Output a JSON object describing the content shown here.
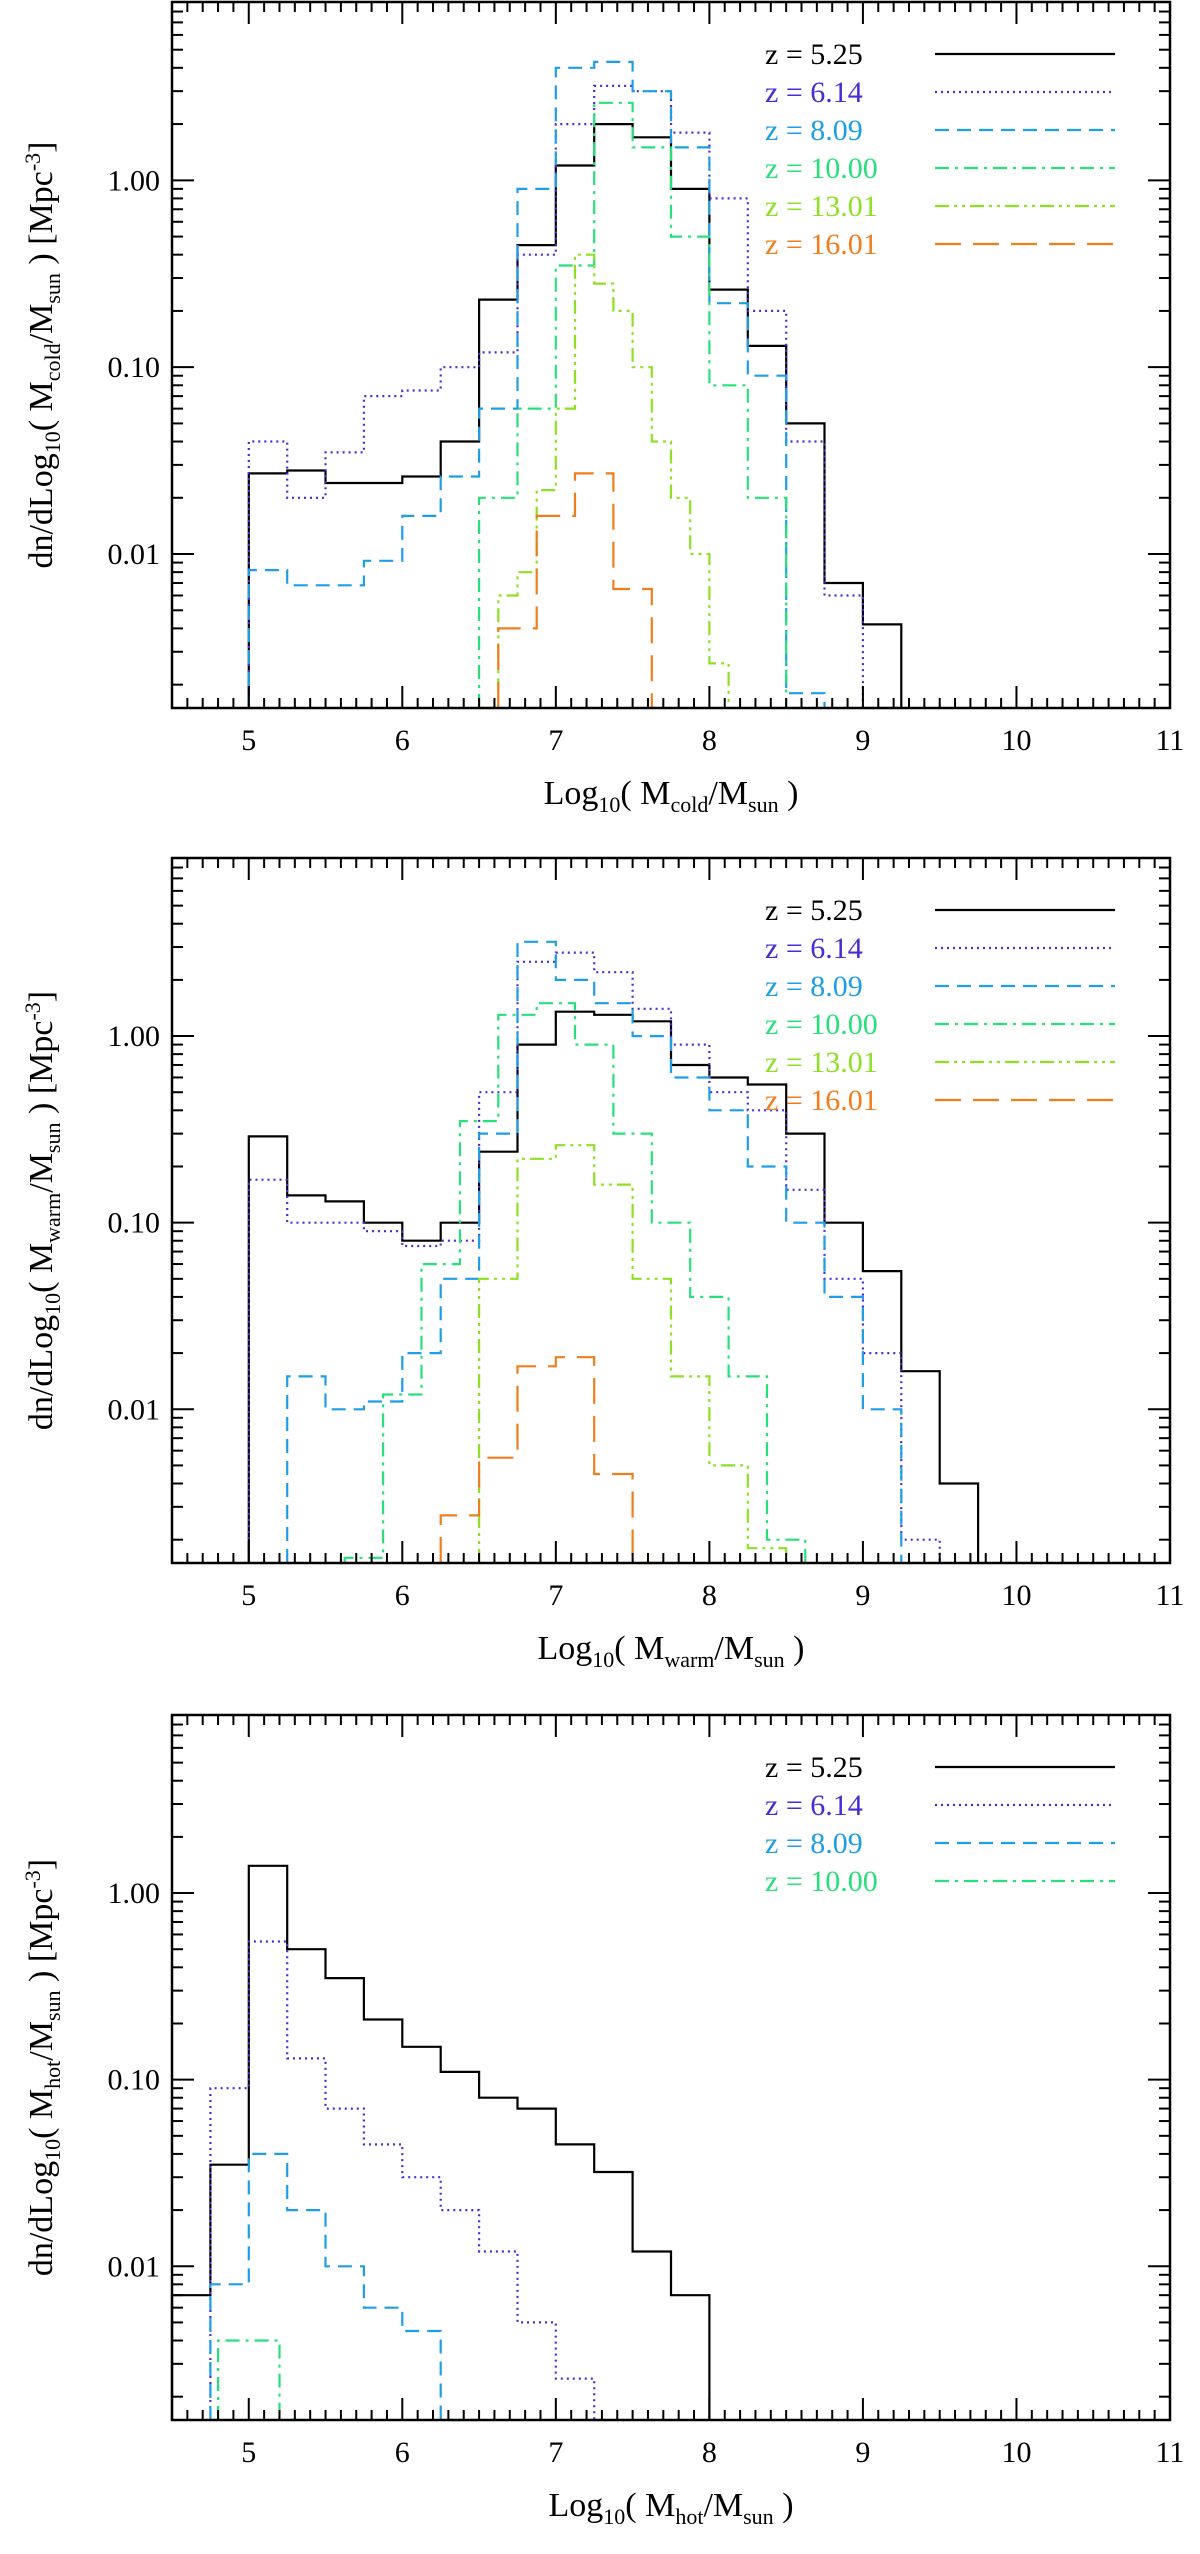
{
  "chart_data": [
    {
      "type": "line",
      "step": true,
      "xlabel": {
        "pre": "Log",
        "sub1": "10",
        "mid": "( M",
        "sub2": "cold",
        "post": "/M",
        "sub3": "sun",
        "end": " )"
      },
      "ylabel": {
        "pre": "dn/dLog",
        "sub1": "10",
        "mid": "( M",
        "sub2": "cold",
        "post": "/M",
        "sub3": "sun",
        "mid2": " ) [Mpc",
        "sup": "-3",
        "end": "]"
      },
      "xlim": [
        4.5,
        11
      ],
      "ylim_log": [
        0.0015,
        9
      ],
      "xticks": [
        "5",
        "6",
        "7",
        "8",
        "9",
        "10",
        "11"
      ],
      "yticks": [
        "0.01",
        "0.10",
        "1.00"
      ],
      "series": [
        {
          "name": "z = 5.25",
          "color": "#000000",
          "dash": "solid",
          "x": [
            5.125,
            5.375,
            5.625,
            5.875,
            6.125,
            6.375,
            6.625,
            6.875,
            7.125,
            7.375,
            7.625,
            7.875,
            8.125,
            8.375,
            8.625,
            8.875,
            9.125
          ],
          "y": [
            0.027,
            0.028,
            0.024,
            0.024,
            0.026,
            0.04,
            0.23,
            0.45,
            1.2,
            2.0,
            1.7,
            0.9,
            0.26,
            0.13,
            0.05,
            0.007,
            0.0042
          ]
        },
        {
          "name": "z = 6.14",
          "color": "#4b2bd6",
          "dash": "dotted",
          "x": [
            5.125,
            5.375,
            5.625,
            5.875,
            6.125,
            6.375,
            6.625,
            6.875,
            7.125,
            7.375,
            7.625,
            7.875,
            8.125,
            8.375,
            8.625,
            8.875,
            9.125
          ],
          "y": [
            0.04,
            0.02,
            0.035,
            0.07,
            0.075,
            0.1,
            0.12,
            0.4,
            2.0,
            3.2,
            3.0,
            1.8,
            0.8,
            0.2,
            0.04,
            0.006,
            0.0015
          ]
        },
        {
          "name": "z = 8.09",
          "color": "#1e9ee6",
          "dash": "dashed",
          "x": [
            5.125,
            5.375,
            5.625,
            5.875,
            6.125,
            6.375,
            6.625,
            6.875,
            7.125,
            7.375,
            7.625,
            7.875,
            8.125,
            8.375,
            8.625
          ],
          "y": [
            0.0082,
            0.0068,
            0.0068,
            0.0092,
            0.016,
            0.026,
            0.06,
            0.9,
            4.0,
            4.3,
            3.0,
            1.5,
            0.22,
            0.09,
            0.0018
          ]
        },
        {
          "name": "z = 10.00",
          "color": "#28e07a",
          "dash": "dashdot",
          "x": [
            6.625,
            6.875,
            7.125,
            7.375,
            7.625,
            7.875,
            8.125,
            8.375
          ],
          "y": [
            0.02,
            0.06,
            0.35,
            2.6,
            1.5,
            0.5,
            0.08,
            0.02
          ]
        },
        {
          "name": "z = 13.01",
          "color": "#8ee024",
          "dash": "dashdotdot",
          "x": [
            6.5625,
            6.6875,
            6.8125,
            6.9375,
            7.0625,
            7.1875,
            7.3125,
            7.4375,
            7.5625,
            7.6875,
            7.8125,
            7.9375,
            8.0625
          ],
          "y": [
            0.0015,
            0.006,
            0.008,
            0.022,
            0.06,
            0.4,
            0.28,
            0.2,
            0.1,
            0.04,
            0.02,
            0.01,
            0.0026
          ]
        },
        {
          "name": "z = 16.01",
          "color": "#f07d1e",
          "dash": "longdash",
          "x": [
            6.75,
            7.0,
            7.25,
            7.5
          ],
          "y": [
            0.004,
            0.016,
            0.027,
            0.0065
          ]
        }
      ]
    },
    {
      "type": "line",
      "step": true,
      "xlabel": {
        "pre": "Log",
        "sub1": "10",
        "mid": "( M",
        "sub2": "warm",
        "post": "/M",
        "sub3": "sun",
        "end": " )"
      },
      "ylabel": {
        "pre": "dn/dLog",
        "sub1": "10",
        "mid": "( M",
        "sub2": "warm",
        "post": "/M",
        "sub3": "sun",
        "mid2": " ) [Mpc",
        "sup": "-3",
        "end": "]"
      },
      "xlim": [
        4.5,
        11
      ],
      "ylim_log": [
        0.0015,
        9
      ],
      "xticks": [
        "5",
        "6",
        "7",
        "8",
        "9",
        "10",
        "11"
      ],
      "yticks": [
        "0.01",
        "0.10",
        "1.00"
      ],
      "series": [
        {
          "name": "z = 5.25",
          "color": "#000000",
          "dash": "solid",
          "x": [
            5.125,
            5.375,
            5.625,
            5.875,
            6.125,
            6.375,
            6.625,
            6.875,
            7.125,
            7.375,
            7.625,
            7.875,
            8.125,
            8.375,
            8.625,
            8.875,
            9.125,
            9.375,
            9.625
          ],
          "y": [
            0.29,
            0.14,
            0.13,
            0.1,
            0.08,
            0.1,
            0.24,
            0.9,
            1.35,
            1.3,
            1.2,
            0.7,
            0.6,
            0.55,
            0.3,
            0.1,
            0.055,
            0.016,
            0.004
          ]
        },
        {
          "name": "z = 6.14",
          "color": "#4b2bd6",
          "dash": "dotted",
          "x": [
            5.125,
            5.375,
            5.625,
            5.875,
            6.125,
            6.375,
            6.625,
            6.875,
            7.125,
            7.375,
            7.625,
            7.875,
            8.125,
            8.375,
            8.625,
            8.875,
            9.125,
            9.375
          ],
          "y": [
            0.17,
            0.1,
            0.1,
            0.09,
            0.075,
            0.08,
            0.5,
            2.5,
            2.8,
            2.2,
            1.4,
            0.9,
            0.5,
            0.4,
            0.15,
            0.05,
            0.02,
            0.002
          ]
        },
        {
          "name": "z = 8.09",
          "color": "#1e9ee6",
          "dash": "dashed",
          "x": [
            5.375,
            5.625,
            5.875,
            6.125,
            6.375,
            6.625,
            6.875,
            7.125,
            7.375,
            7.625,
            7.875,
            8.125,
            8.375,
            8.625,
            8.875,
            9.125
          ],
          "y": [
            0.015,
            0.01,
            0.011,
            0.02,
            0.05,
            0.3,
            3.2,
            2.0,
            1.5,
            1.0,
            0.6,
            0.4,
            0.2,
            0.1,
            0.04,
            0.01
          ]
        },
        {
          "name": "z = 10.00",
          "color": "#28e07a",
          "dash": "dashdot",
          "x": [
            5.75,
            6.0,
            6.25,
            6.5,
            6.75,
            7.0,
            7.25,
            7.5,
            7.75,
            8.0,
            8.25,
            8.5
          ],
          "y": [
            0.0016,
            0.012,
            0.06,
            0.35,
            1.3,
            1.5,
            0.9,
            0.3,
            0.1,
            0.04,
            0.015,
            0.002
          ]
        },
        {
          "name": "z = 13.01",
          "color": "#8ee024",
          "dash": "dashdotdot",
          "x": [
            6.625,
            6.875,
            7.125,
            7.375,
            7.625,
            7.875,
            8.125,
            8.375
          ],
          "y": [
            0.05,
            0.22,
            0.26,
            0.16,
            0.05,
            0.015,
            0.005,
            0.0018
          ]
        },
        {
          "name": "z = 16.01",
          "color": "#f07d1e",
          "dash": "longdash",
          "x": [
            6.375,
            6.625,
            6.875,
            7.125,
            7.375,
            7.625
          ],
          "y": [
            0.0027,
            0.0055,
            0.017,
            0.019,
            0.0045,
            0.0015
          ]
        }
      ]
    },
    {
      "type": "line",
      "step": true,
      "xlabel": {
        "pre": "Log",
        "sub1": "10",
        "mid": "( M",
        "sub2": "hot",
        "post": "/M",
        "sub3": "sun",
        "end": " )"
      },
      "ylabel": {
        "pre": "dn/dLog",
        "sub1": "10",
        "mid": "( M",
        "sub2": "hot",
        "post": "/M",
        "sub3": "sun",
        "mid2": " ) [Mpc",
        "sup": "-3",
        "end": "]"
      },
      "xlim": [
        4.5,
        11
      ],
      "ylim_log": [
        0.0015,
        9
      ],
      "xticks": [
        "5",
        "6",
        "7",
        "8",
        "9",
        "10",
        "11"
      ],
      "yticks": [
        "0.01",
        "0.10",
        "1.00"
      ],
      "series": [
        {
          "name": "z = 5.25",
          "color": "#000000",
          "dash": "solid",
          "x": [
            4.625,
            4.875,
            5.125,
            5.375,
            5.625,
            5.875,
            6.125,
            6.375,
            6.625,
            6.875,
            7.125,
            7.375,
            7.625,
            7.875
          ],
          "y": [
            0.007,
            0.035,
            1.4,
            0.5,
            0.35,
            0.21,
            0.15,
            0.11,
            0.08,
            0.07,
            0.045,
            0.032,
            0.012,
            0.007
          ]
        },
        {
          "name": "z = 6.14",
          "color": "#4b2bd6",
          "dash": "dotted",
          "x": [
            4.875,
            5.125,
            5.375,
            5.625,
            5.875,
            6.125,
            6.375,
            6.625,
            6.875,
            7.125,
            7.375
          ],
          "y": [
            0.09,
            0.55,
            0.13,
            0.07,
            0.045,
            0.03,
            0.02,
            0.012,
            0.005,
            0.0025,
            0.0015
          ]
        },
        {
          "name": "z = 8.09",
          "color": "#1e9ee6",
          "dash": "dashed",
          "x": [
            4.875,
            5.125,
            5.375,
            5.625,
            5.875,
            6.125,
            6.375
          ],
          "y": [
            0.008,
            0.04,
            0.02,
            0.01,
            0.006,
            0.0045,
            0.0015
          ]
        },
        {
          "name": "z = 10.00",
          "color": "#28e07a",
          "dash": "dashdot",
          "x": [
            4.9,
            5.1,
            5.3
          ],
          "y": [
            0.004,
            0.004,
            0.0015
          ]
        }
      ]
    }
  ]
}
